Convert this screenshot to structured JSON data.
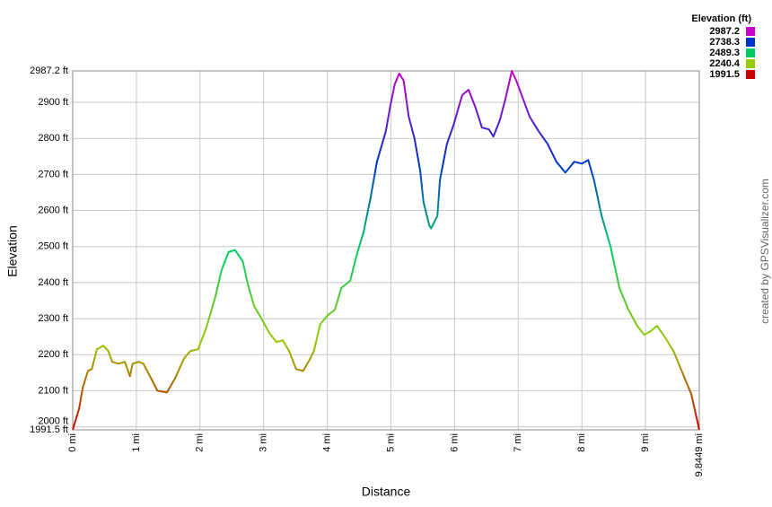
{
  "chart_data": {
    "type": "line",
    "xlabel": "Distance",
    "ylabel": "Elevation",
    "credit": "created by GPSVisualizer.com",
    "legend_title": "Elevation (ft)",
    "color_scale": [
      {
        "value": 2987.2,
        "color": "#cc00cc"
      },
      {
        "value": 2738.3,
        "color": "#0033cc"
      },
      {
        "value": 2489.3,
        "color": "#00cc66"
      },
      {
        "value": 2240.4,
        "color": "#99cc00"
      },
      {
        "value": 1991.5,
        "color": "#cc0000"
      }
    ],
    "grid": true,
    "xlim": [
      0,
      9.8449
    ],
    "ylim": [
      1991.5,
      2987.2
    ],
    "xticks": [
      {
        "value": 0,
        "label": "0 mi"
      },
      {
        "value": 1,
        "label": "1 mi"
      },
      {
        "value": 2,
        "label": "2 mi"
      },
      {
        "value": 3,
        "label": "3 mi"
      },
      {
        "value": 4,
        "label": "4 mi"
      },
      {
        "value": 5,
        "label": "5 mi"
      },
      {
        "value": 6,
        "label": "6 mi"
      },
      {
        "value": 7,
        "label": "7 mi"
      },
      {
        "value": 8,
        "label": "8 mi"
      },
      {
        "value": 9,
        "label": "9 mi"
      },
      {
        "value": 9.8449,
        "label": "9.8449 mi"
      }
    ],
    "yticks": [
      {
        "value": 1991.5,
        "label": "1991.5 ft"
      },
      {
        "value": 2000,
        "label": "2000 ft"
      },
      {
        "value": 2100,
        "label": "2100 ft"
      },
      {
        "value": 2200,
        "label": "2200 ft"
      },
      {
        "value": 2300,
        "label": "2300 ft"
      },
      {
        "value": 2400,
        "label": "2400 ft"
      },
      {
        "value": 2500,
        "label": "2500 ft"
      },
      {
        "value": 2600,
        "label": "2600 ft"
      },
      {
        "value": 2700,
        "label": "2700 ft"
      },
      {
        "value": 2800,
        "label": "2800 ft"
      },
      {
        "value": 2900,
        "label": "2900 ft"
      },
      {
        "value": 2987.2,
        "label": "2987.2 ft"
      }
    ],
    "x": [
      0,
      0.1,
      0.16,
      0.24,
      0.3,
      0.38,
      0.48,
      0.56,
      0.62,
      0.72,
      0.82,
      0.9,
      0.94,
      1.04,
      1.11,
      1.23,
      1.33,
      1.48,
      1.61,
      1.75,
      1.85,
      1.97,
      2.1,
      2.24,
      2.34,
      2.45,
      2.55,
      2.67,
      2.76,
      2.85,
      2.95,
      3.09,
      3.2,
      3.3,
      3.4,
      3.51,
      3.62,
      3.72,
      3.79,
      3.89,
      4.01,
      4.12,
      4.22,
      4.36,
      4.46,
      4.57,
      4.68,
      4.78,
      4.92,
      4.99,
      5.06,
      5.13,
      5.2,
      5.28,
      5.37,
      5.46,
      5.51,
      5.6,
      5.63,
      5.73,
      5.77,
      5.88,
      5.98,
      6.12,
      6.22,
      6.33,
      6.43,
      6.54,
      6.61,
      6.71,
      6.8,
      6.9,
      6.97,
      7.18,
      7.32,
      7.46,
      7.6,
      7.74,
      7.88,
      8.0,
      8.1,
      8.19,
      8.31,
      8.45,
      8.59,
      8.73,
      8.87,
      8.98,
      9.08,
      9.18,
      9.3,
      9.44,
      9.58,
      9.72,
      9.8449
    ],
    "values": [
      1991.5,
      2050,
      2110,
      2155,
      2160,
      2215,
      2225,
      2210,
      2180,
      2175,
      2180,
      2140,
      2175,
      2180,
      2175,
      2135,
      2100,
      2095,
      2135,
      2190,
      2210,
      2215,
      2275,
      2360,
      2435,
      2485,
      2490,
      2460,
      2390,
      2335,
      2305,
      2260,
      2235,
      2240,
      2210,
      2160,
      2155,
      2185,
      2210,
      2285,
      2310,
      2325,
      2385,
      2405,
      2475,
      2540,
      2635,
      2735,
      2820,
      2890,
      2950,
      2980,
      2960,
      2860,
      2800,
      2710,
      2625,
      2560,
      2550,
      2585,
      2685,
      2785,
      2835,
      2920,
      2935,
      2885,
      2830,
      2825,
      2805,
      2850,
      2910,
      2987.2,
      2960,
      2860,
      2820,
      2785,
      2735,
      2705,
      2735,
      2730,
      2740,
      2685,
      2585,
      2500,
      2385,
      2325,
      2280,
      2255,
      2265,
      2280,
      2250,
      2210,
      2150,
      2090,
      1991.5
    ]
  }
}
